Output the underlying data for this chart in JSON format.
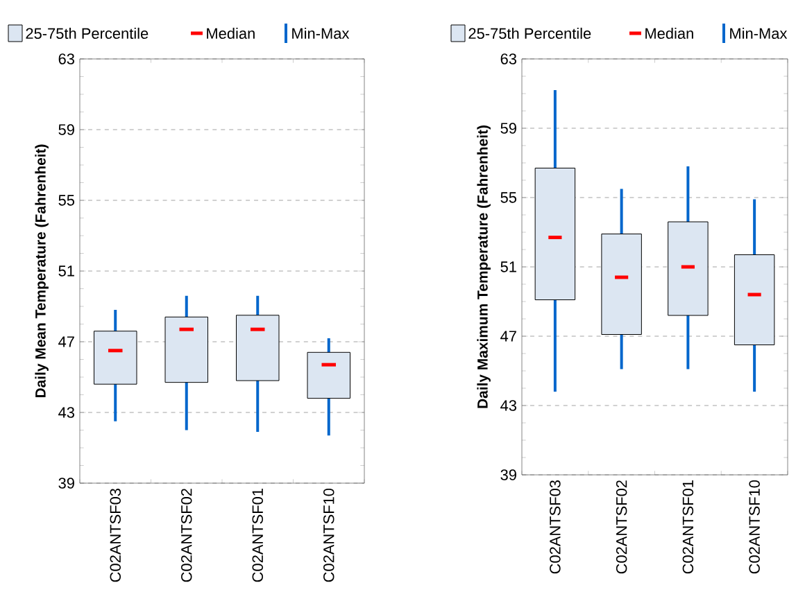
{
  "chart_data": [
    {
      "type": "box",
      "categories": [
        "C02ANTSF03",
        "C02ANTSF02",
        "C02ANTSF01",
        "C02ANTSF10"
      ],
      "ylabel": "Daily Mean Temperature (Fahrenheit)",
      "ylim": [
        39,
        63
      ],
      "yticks": [
        39,
        43,
        47,
        51,
        55,
        59,
        63
      ],
      "grid": "y",
      "legend": "top",
      "annotations": [
        "Median",
        "Min-Max"
      ],
      "series": [
        {
          "name": "25-75th Percentile",
          "color": "#dce6f2",
          "boxes": [
            {
              "low": 42.5,
              "q1": 44.6,
              "median": 46.5,
              "q3": 47.6,
              "high": 48.8
            },
            {
              "low": 42.0,
              "q1": 44.7,
              "median": 47.7,
              "q3": 48.4,
              "high": 49.6
            },
            {
              "low": 41.9,
              "q1": 44.8,
              "median": 47.7,
              "q3": 48.5,
              "high": 49.6
            },
            {
              "low": 41.7,
              "q1": 43.8,
              "median": 45.7,
              "q3": 46.4,
              "high": 47.2
            }
          ]
        }
      ]
    },
    {
      "type": "box",
      "categories": [
        "C02ANTSF03",
        "C02ANTSF02",
        "C02ANTSF01",
        "C02ANTSF10"
      ],
      "ylabel": "Daily Maximum Temperature (Fahrenheit)",
      "ylim": [
        39,
        63
      ],
      "yticks": [
        39,
        43,
        47,
        51,
        55,
        59,
        63
      ],
      "grid": "y",
      "legend": "top",
      "annotations": [
        "Median",
        "Min-Max"
      ],
      "series": [
        {
          "name": "25-75th Percentile",
          "color": "#dce6f2",
          "boxes": [
            {
              "low": 43.8,
              "q1": 49.1,
              "median": 52.7,
              "q3": 56.7,
              "high": 61.2
            },
            {
              "low": 45.1,
              "q1": 47.1,
              "median": 50.4,
              "q3": 52.9,
              "high": 55.5
            },
            {
              "low": 45.1,
              "q1": 48.2,
              "median": 51.0,
              "q3": 53.6,
              "high": 56.8
            },
            {
              "low": 43.8,
              "q1": 46.5,
              "median": 49.4,
              "q3": 51.7,
              "high": 54.9
            }
          ]
        }
      ]
    }
  ]
}
